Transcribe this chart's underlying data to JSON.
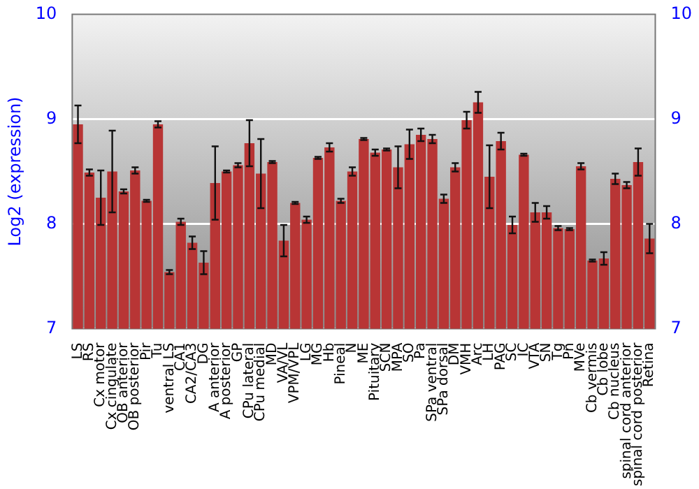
{
  "chart_data": {
    "type": "bar",
    "ylabel": "Log2 (expression)",
    "categories": [
      "LS",
      "RS",
      "Cx motor",
      "Cx cingulate",
      "OB anterior",
      "OB posterior",
      "Pir",
      "Tu",
      "ventral LS",
      "CA1",
      "CA2/CA3",
      "DG",
      "A anterior",
      "A posterior",
      "GP",
      "CPu lateral",
      "CPu medial",
      "MD",
      "VA/VL",
      "VPM/VPL",
      "LG",
      "MG",
      "Hb",
      "Pineal",
      "N",
      "ME",
      "Pituitary",
      "SCN",
      "MPA",
      "SO",
      "Pa",
      "SPa ventral",
      "SPa dorsal",
      "DM",
      "VMH",
      "Arc",
      "LH",
      "PAG",
      "SC",
      "IC",
      "VTA",
      "SN",
      "Tg",
      "Pn",
      "MVe",
      "Cb vermis",
      "Cb lobe",
      "Cb nucleus",
      "spinal cord anterior",
      "spinal cord posterior",
      "Retina"
    ],
    "values": [
      8.95,
      8.49,
      8.25,
      8.5,
      8.31,
      8.51,
      8.22,
      8.95,
      7.54,
      8.02,
      7.82,
      7.63,
      8.39,
      8.5,
      8.56,
      8.77,
      8.48,
      8.59,
      7.84,
      8.2,
      8.04,
      8.63,
      8.73,
      8.22,
      8.5,
      8.81,
      8.68,
      8.71,
      8.54,
      8.76,
      8.85,
      8.81,
      8.24,
      8.54,
      8.99,
      9.16,
      8.45,
      8.79,
      7.99,
      8.66,
      8.11,
      8.11,
      7.96,
      7.95,
      8.55,
      7.65,
      7.67,
      8.43,
      8.37,
      8.59,
      7.86
    ],
    "errors": [
      0.18,
      0.03,
      0.26,
      0.39,
      0.02,
      0.03,
      0.01,
      0.03,
      0.02,
      0.03,
      0.06,
      0.11,
      0.35,
      0.01,
      0.02,
      0.22,
      0.33,
      0.01,
      0.15,
      0.01,
      0.03,
      0.01,
      0.04,
      0.02,
      0.04,
      0.01,
      0.03,
      0.01,
      0.2,
      0.14,
      0.06,
      0.04,
      0.04,
      0.04,
      0.08,
      0.1,
      0.3,
      0.08,
      0.08,
      0.01,
      0.09,
      0.06,
      0.02,
      0.01,
      0.03,
      0.01,
      0.06,
      0.05,
      0.03,
      0.13,
      0.14
    ],
    "color": "#b83535",
    "ylim": [
      7,
      10
    ],
    "yticks": [
      7,
      8,
      9,
      10
    ],
    "y2lim": [
      7,
      10
    ],
    "y2ticks": [
      7,
      8,
      9,
      10
    ],
    "grid": "y"
  }
}
